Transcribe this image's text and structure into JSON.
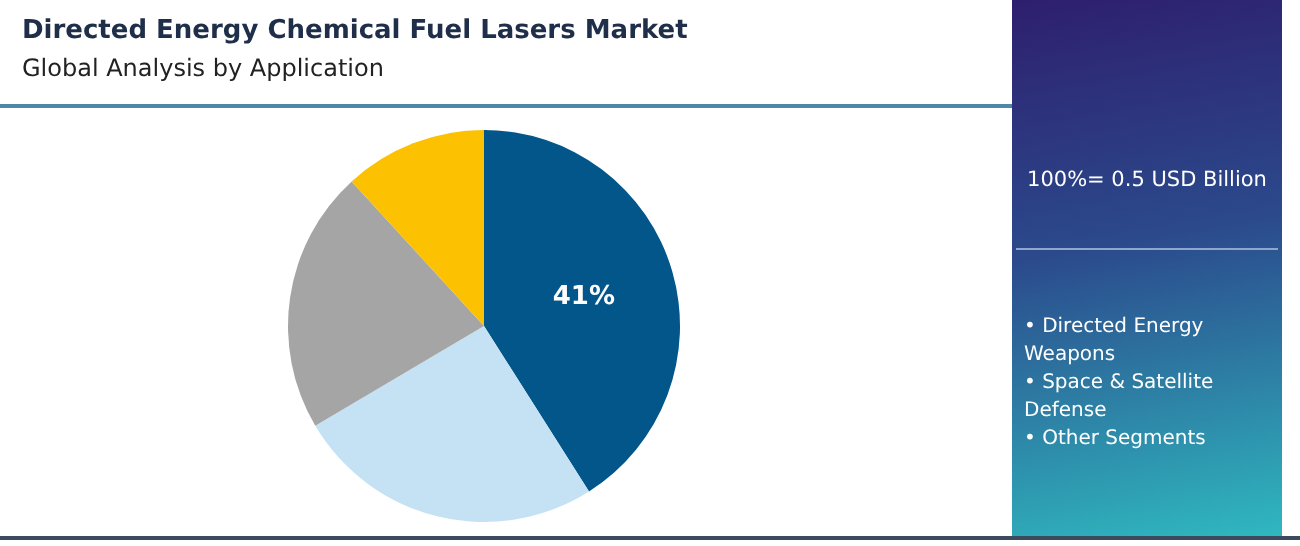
{
  "chart_data": {
    "type": "pie",
    "title": "Directed Energy Chemical Fuel Lasers Market",
    "subtitle": "Global Analysis by Application",
    "categories": [
      null,
      null,
      null,
      null
    ],
    "values": [
      41,
      25.5,
      21.7,
      11.8
    ],
    "colors": [
      "#02568a",
      "#c4e2f3",
      "#a5a5a5",
      "#fcc101"
    ],
    "value_labels": [
      "41%",
      null,
      null,
      null
    ],
    "annotations": [
      "100%= 0.5 USD Billion",
      "• Directed Energy Weapons",
      "• Space & Satellite Defense",
      "• Other Segments"
    ]
  }
}
